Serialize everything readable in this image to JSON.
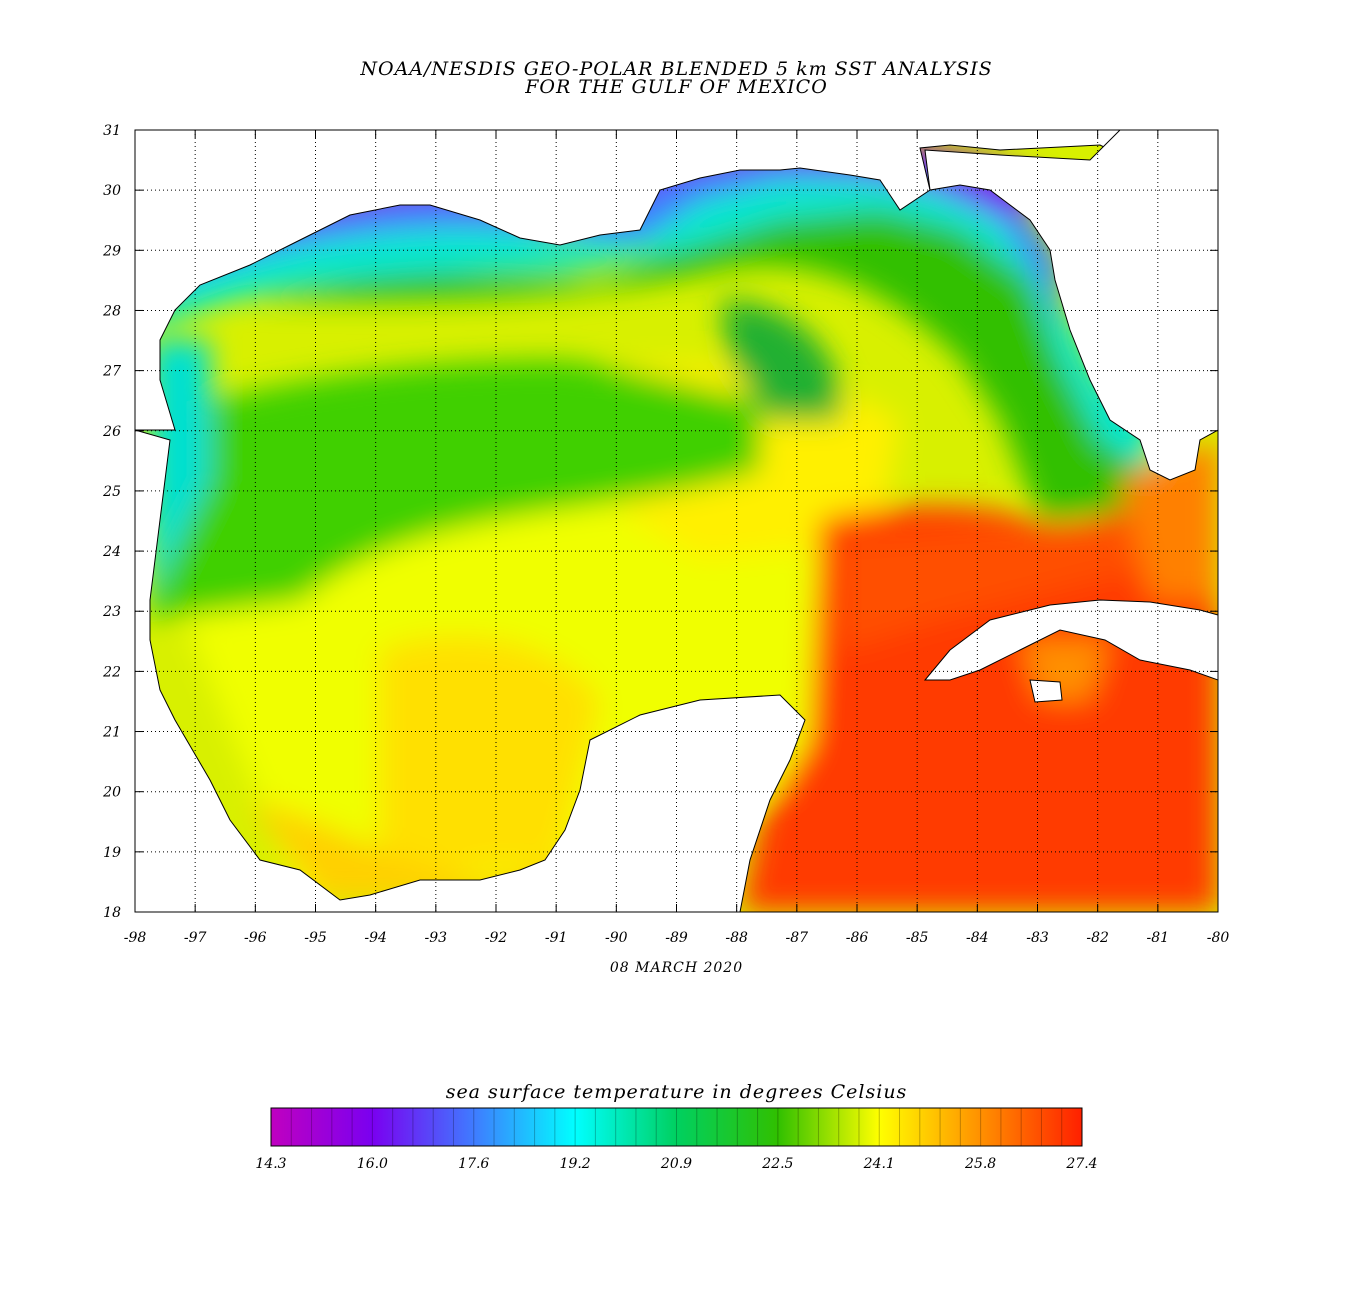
{
  "title": {
    "line1": "NOAA/NESDIS GEO-POLAR BLENDED 5 km SST ANALYSIS",
    "line2": "FOR THE GULF OF MEXICO"
  },
  "date": "08 MARCH 2020",
  "axes": {
    "lon_ticks": [
      "-98",
      "-97",
      "-96",
      "-95",
      "-94",
      "-93",
      "-92",
      "-91",
      "-90",
      "-89",
      "-88",
      "-87",
      "-86",
      "-85",
      "-84",
      "-83",
      "-82",
      "-81",
      "-80"
    ],
    "lat_ticks": [
      "18",
      "19",
      "20",
      "21",
      "22",
      "23",
      "24",
      "25",
      "26",
      "27",
      "28",
      "29",
      "30",
      "31"
    ],
    "lon_range": [
      -98,
      -80
    ],
    "lat_range": [
      18,
      31
    ],
    "grid": true
  },
  "colorbar": {
    "title": "sea surface temperature in degrees Celsius",
    "labels": [
      "14.3",
      "16.0",
      "17.6",
      "19.2",
      "20.9",
      "22.5",
      "24.1",
      "25.8",
      "27.4"
    ],
    "range": [
      14.3,
      27.4
    ],
    "colors": [
      "#c000c0",
      "#7a00f0",
      "#3f7bff",
      "#00ffff",
      "#00d060",
      "#30c000",
      "#ffff00",
      "#ff9000",
      "#ff2000"
    ]
  },
  "colors": {
    "land": "#ffffff",
    "coast": "#000000",
    "cold": "#7a00f0",
    "warm": "#ff2000"
  }
}
